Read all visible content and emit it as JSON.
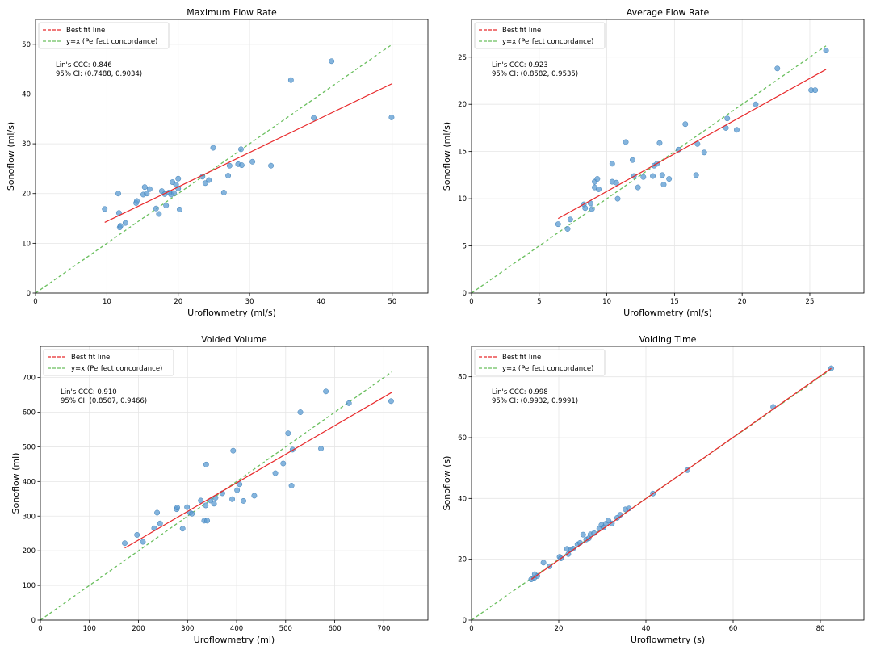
{
  "legend": {
    "fit_label": "Best fit line",
    "identity_label": "y=x (Perfect concordance)",
    "placement": "upper-left"
  },
  "colors": {
    "points": "#5b9bd1",
    "points_edge": "#3d7fb8",
    "fit": "#e8292b",
    "identity": "#6abf5e",
    "grid": "#e6e6e6"
  },
  "chart_data": [
    {
      "type": "scatter",
      "title": "Maximum Flow Rate",
      "xlabel": "Uroflowmetry (ml/s)",
      "ylabel": "Sonoflow (ml/s)",
      "xlim": [
        0,
        55
      ],
      "ylim": [
        0,
        55
      ],
      "xticks": [
        0,
        10,
        20,
        30,
        40,
        50
      ],
      "yticks": [
        0,
        10,
        20,
        30,
        40,
        50
      ],
      "grid": true,
      "ccc_text": "Lin's CCC: 0.846",
      "ci_text": "95% CI: (0.7488, 0.9034)",
      "fit_line": [
        [
          9.7,
          14.2
        ],
        [
          50,
          42.1
        ]
      ],
      "identity_line": [
        [
          0,
          0
        ],
        [
          50,
          50
        ]
      ],
      "points": [
        [
          9.7,
          16.9
        ],
        [
          11.6,
          20.0
        ],
        [
          11.7,
          16.1
        ],
        [
          11.8,
          13.2
        ],
        [
          11.9,
          13.5
        ],
        [
          12.6,
          14.1
        ],
        [
          14.1,
          18.1
        ],
        [
          14.2,
          18.5
        ],
        [
          15.1,
          19.8
        ],
        [
          15.3,
          21.3
        ],
        [
          15.6,
          20.0
        ],
        [
          16.0,
          20.9
        ],
        [
          16.9,
          17.0
        ],
        [
          17.3,
          15.9
        ],
        [
          17.7,
          20.5
        ],
        [
          18.1,
          19.9
        ],
        [
          18.3,
          17.6
        ],
        [
          18.7,
          20.2
        ],
        [
          19.0,
          19.8
        ],
        [
          19.2,
          22.3
        ],
        [
          19.4,
          20.1
        ],
        [
          19.7,
          21.8
        ],
        [
          20.0,
          23.0
        ],
        [
          20.0,
          21.0
        ],
        [
          20.2,
          16.8
        ],
        [
          23.4,
          23.4
        ],
        [
          23.8,
          22.1
        ],
        [
          24.3,
          22.7
        ],
        [
          24.9,
          29.2
        ],
        [
          26.4,
          20.2
        ],
        [
          27.0,
          23.6
        ],
        [
          27.2,
          25.6
        ],
        [
          28.4,
          25.9
        ],
        [
          28.8,
          28.9
        ],
        [
          28.9,
          25.7
        ],
        [
          30.4,
          26.4
        ],
        [
          33.0,
          25.6
        ],
        [
          35.8,
          42.8
        ],
        [
          39.0,
          35.2
        ],
        [
          41.5,
          46.6
        ],
        [
          49.9,
          35.3
        ]
      ]
    },
    {
      "type": "scatter",
      "title": "Average Flow Rate",
      "xlabel": "Uroflowmetry (ml/s)",
      "ylabel": "Sonoflow (ml/s)",
      "xlim": [
        0,
        29
      ],
      "ylim": [
        0,
        29
      ],
      "xticks": [
        0,
        5,
        10,
        15,
        20,
        25
      ],
      "yticks": [
        0,
        5,
        10,
        15,
        20,
        25
      ],
      "grid": true,
      "ccc_text": "Lin's CCC: 0.923",
      "ci_text": "95% CI: (0.8582, 0.9535)",
      "fit_line": [
        [
          6.4,
          7.9
        ],
        [
          26.2,
          23.7
        ]
      ],
      "identity_line": [
        [
          0,
          0
        ],
        [
          26.2,
          26.2
        ]
      ],
      "points": [
        [
          6.4,
          7.3
        ],
        [
          7.1,
          6.8
        ],
        [
          7.3,
          7.8
        ],
        [
          8.3,
          9.4
        ],
        [
          8.4,
          9.0
        ],
        [
          8.8,
          9.5
        ],
        [
          8.9,
          8.9
        ],
        [
          9.1,
          11.8
        ],
        [
          9.1,
          11.2
        ],
        [
          9.3,
          12.1
        ],
        [
          9.4,
          11.0
        ],
        [
          10.4,
          11.8
        ],
        [
          10.4,
          13.7
        ],
        [
          10.7,
          11.7
        ],
        [
          10.8,
          10.0
        ],
        [
          11.4,
          16.0
        ],
        [
          11.9,
          14.1
        ],
        [
          12.0,
          12.4
        ],
        [
          12.3,
          11.2
        ],
        [
          12.7,
          12.3
        ],
        [
          13.4,
          12.4
        ],
        [
          13.5,
          13.5
        ],
        [
          13.7,
          13.7
        ],
        [
          13.9,
          15.9
        ],
        [
          14.1,
          12.5
        ],
        [
          14.2,
          11.5
        ],
        [
          14.6,
          12.1
        ],
        [
          15.3,
          15.2
        ],
        [
          15.8,
          17.9
        ],
        [
          16.6,
          12.5
        ],
        [
          16.7,
          15.8
        ],
        [
          17.2,
          14.9
        ],
        [
          18.8,
          17.5
        ],
        [
          18.9,
          18.5
        ],
        [
          19.6,
          17.3
        ],
        [
          21.0,
          20.0
        ],
        [
          22.6,
          23.8
        ],
        [
          25.1,
          21.5
        ],
        [
          25.4,
          21.5
        ],
        [
          26.2,
          25.7
        ]
      ]
    },
    {
      "type": "scatter",
      "title": "Voided Volume",
      "xlabel": "Uroflowmetry (ml)",
      "ylabel": "Sonoflow (ml)",
      "xlim": [
        0,
        790
      ],
      "ylim": [
        0,
        790
      ],
      "xticks": [
        0,
        100,
        200,
        300,
        400,
        500,
        600,
        700
      ],
      "yticks": [
        0,
        100,
        200,
        300,
        400,
        500,
        600,
        700
      ],
      "grid": true,
      "ccc_text": "Lin's CCC: 0.910",
      "ci_text": "95% CI: (0.8507, 0.9466)",
      "fit_line": [
        [
          172,
          208
        ],
        [
          716,
          657
        ]
      ],
      "identity_line": [
        [
          0,
          0
        ],
        [
          716,
          716
        ]
      ],
      "points": [
        [
          172,
          222
        ],
        [
          197,
          246
        ],
        [
          209,
          226
        ],
        [
          232,
          265
        ],
        [
          238,
          310
        ],
        [
          244,
          279
        ],
        [
          278,
          320
        ],
        [
          279,
          325
        ],
        [
          290,
          264
        ],
        [
          299,
          326
        ],
        [
          305,
          310
        ],
        [
          309,
          307
        ],
        [
          327,
          345
        ],
        [
          334,
          287
        ],
        [
          337,
          331
        ],
        [
          338,
          449
        ],
        [
          340,
          287
        ],
        [
          347,
          345
        ],
        [
          354,
          336
        ],
        [
          357,
          353
        ],
        [
          371,
          366
        ],
        [
          391,
          349
        ],
        [
          393,
          489
        ],
        [
          401,
          375
        ],
        [
          406,
          392
        ],
        [
          414,
          344
        ],
        [
          436,
          359
        ],
        [
          479,
          424
        ],
        [
          495,
          452
        ],
        [
          505,
          539
        ],
        [
          512,
          388
        ],
        [
          514,
          492
        ],
        [
          530,
          600
        ],
        [
          572,
          495
        ],
        [
          582,
          660
        ],
        [
          629,
          626
        ],
        [
          715,
          632
        ]
      ]
    },
    {
      "type": "scatter",
      "title": "Voiding Time",
      "xlabel": "Uroflowmetry (s)",
      "ylabel": "Sonoflow (s)",
      "xlim": [
        0,
        90
      ],
      "ylim": [
        0,
        90
      ],
      "xticks": [
        0,
        20,
        40,
        60,
        80
      ],
      "yticks": [
        0,
        20,
        40,
        60,
        80
      ],
      "grid": true,
      "ccc_text": "Lin's CCC: 0.998",
      "ci_text": "95% CI: (0.9932, 0.9991)",
      "fit_line": [
        [
          13.7,
          13.4
        ],
        [
          82.5,
          82.8
        ]
      ],
      "identity_line": [
        [
          0,
          0
        ],
        [
          82.5,
          82.5
        ]
      ],
      "points": [
        [
          13.7,
          13.4
        ],
        [
          14.4,
          13.9
        ],
        [
          14.5,
          15.1
        ],
        [
          15.1,
          14.5
        ],
        [
          16.5,
          18.9
        ],
        [
          17.9,
          17.7
        ],
        [
          20.2,
          20.8
        ],
        [
          20.5,
          20.3
        ],
        [
          21.9,
          23.4
        ],
        [
          22.2,
          21.7
        ],
        [
          22.8,
          23.2
        ],
        [
          23.3,
          23.5
        ],
        [
          24.3,
          24.9
        ],
        [
          24.9,
          25.4
        ],
        [
          25.6,
          28.1
        ],
        [
          26.3,
          26.5
        ],
        [
          26.9,
          26.9
        ],
        [
          27.3,
          28.2
        ],
        [
          28.1,
          28.6
        ],
        [
          29.3,
          30.1
        ],
        [
          29.8,
          31.3
        ],
        [
          30.3,
          30.5
        ],
        [
          30.8,
          31.7
        ],
        [
          31.4,
          32.7
        ],
        [
          32.2,
          31.8
        ],
        [
          33.4,
          33.6
        ],
        [
          34.1,
          34.6
        ],
        [
          35.3,
          36.4
        ],
        [
          36.1,
          36.7
        ],
        [
          41.6,
          41.6
        ],
        [
          49.5,
          49.3
        ],
        [
          69.2,
          70.1
        ],
        [
          82.5,
          82.8
        ]
      ]
    }
  ]
}
